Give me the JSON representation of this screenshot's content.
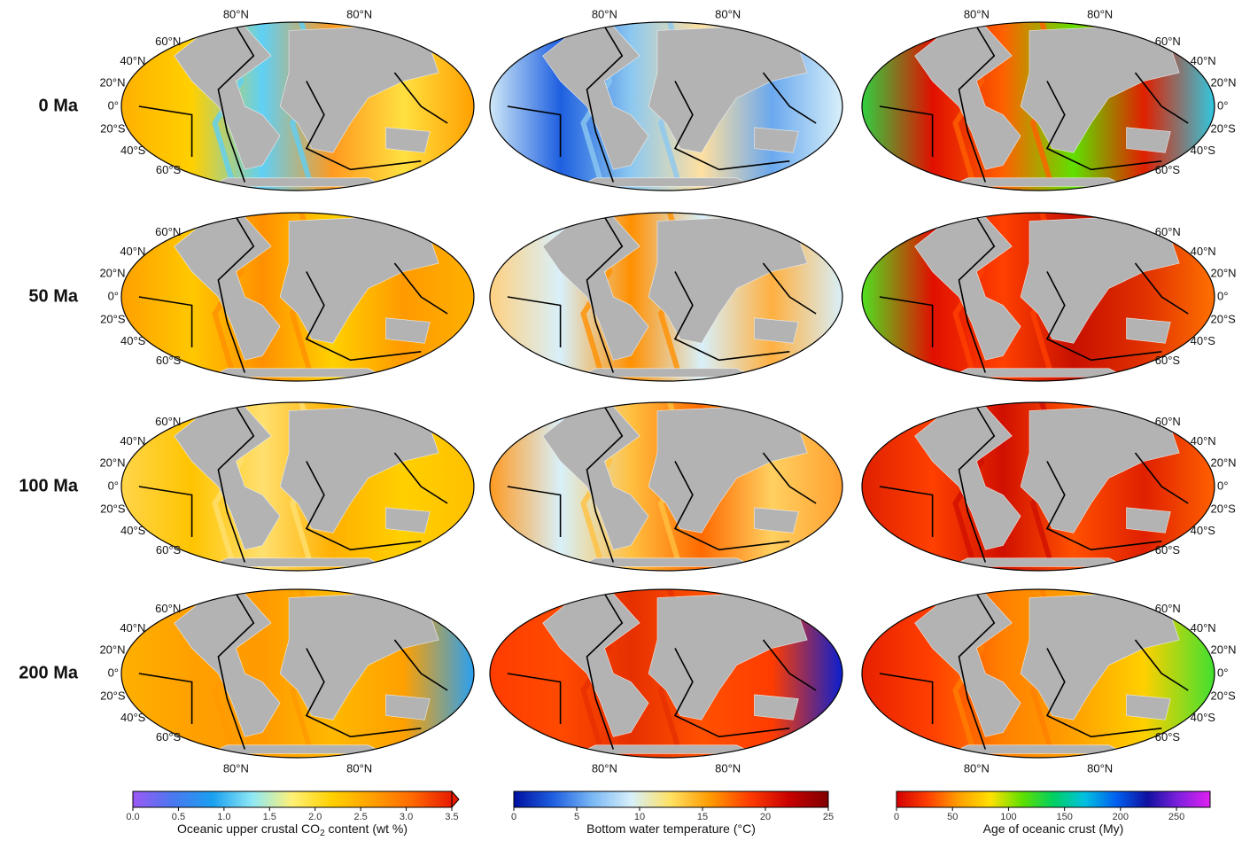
{
  "rows": [
    "0 Ma",
    "50 Ma",
    "100 Ma",
    "200 Ma"
  ],
  "graticule": {
    "meridian": "80°N",
    "parallels": [
      "60°N",
      "40°N",
      "20°N",
      "0°",
      "20°S",
      "40°S",
      "60°S"
    ]
  },
  "colorbars": [
    {
      "title": "Oceanic upper crustal CO",
      "title_sub": "2",
      "title_end": " content (wt %)",
      "lim": [
        0,
        3.5
      ],
      "ticks": [
        {
          "value": 0,
          "label": "0.0"
        },
        {
          "value": 0.5,
          "label": "0.5"
        },
        {
          "value": 1,
          "label": "1.0"
        },
        {
          "value": 1.5,
          "label": "1.5"
        },
        {
          "value": 2,
          "label": "2.0"
        },
        {
          "value": 2.5,
          "label": "2.5"
        },
        {
          "value": 3,
          "label": "3.0"
        },
        {
          "value": 3.5,
          "label": "3.5"
        }
      ],
      "colors": [
        "#9b59f5",
        "#4a78f0",
        "#1aa0f0",
        "#8fe8f5",
        "#fff176",
        "#ffd000",
        "#ffa000",
        "#ff6a00",
        "#e81a00"
      ]
    },
    {
      "title": "Bottom water temperature (°C)",
      "lim": [
        0,
        25
      ],
      "ticks": [
        0,
        5,
        10,
        15,
        20,
        25
      ],
      "colors": [
        "#0010a0",
        "#1e5fe0",
        "#7ab8f5",
        "#d8f0fa",
        "#ffe060",
        "#ff9a00",
        "#ff3c00",
        "#c80000",
        "#800000"
      ]
    },
    {
      "title": "Age of oceanic crust (My)",
      "lim": [
        0,
        280
      ],
      "ticks": [
        0,
        50,
        100,
        150,
        200,
        250
      ],
      "colors": [
        "#d40000",
        "#ff4000",
        "#ffa000",
        "#ffe000",
        "#60e000",
        "#00d060",
        "#00c0e0",
        "#0060f0",
        "#1010a0",
        "#8020e0",
        "#e020f0"
      ]
    }
  ]
}
